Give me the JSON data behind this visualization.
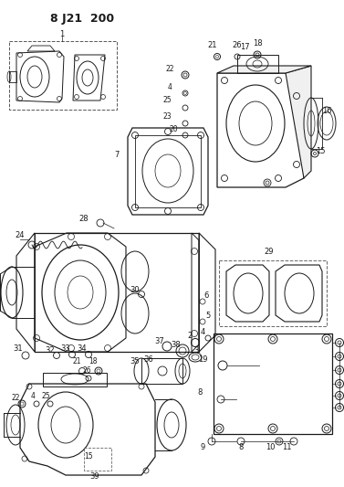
{
  "title": "8 J21  200",
  "bg_color": "#ffffff",
  "line_color": "#1a1a1a",
  "fig_width": 3.77,
  "fig_height": 5.33,
  "dpi": 100
}
